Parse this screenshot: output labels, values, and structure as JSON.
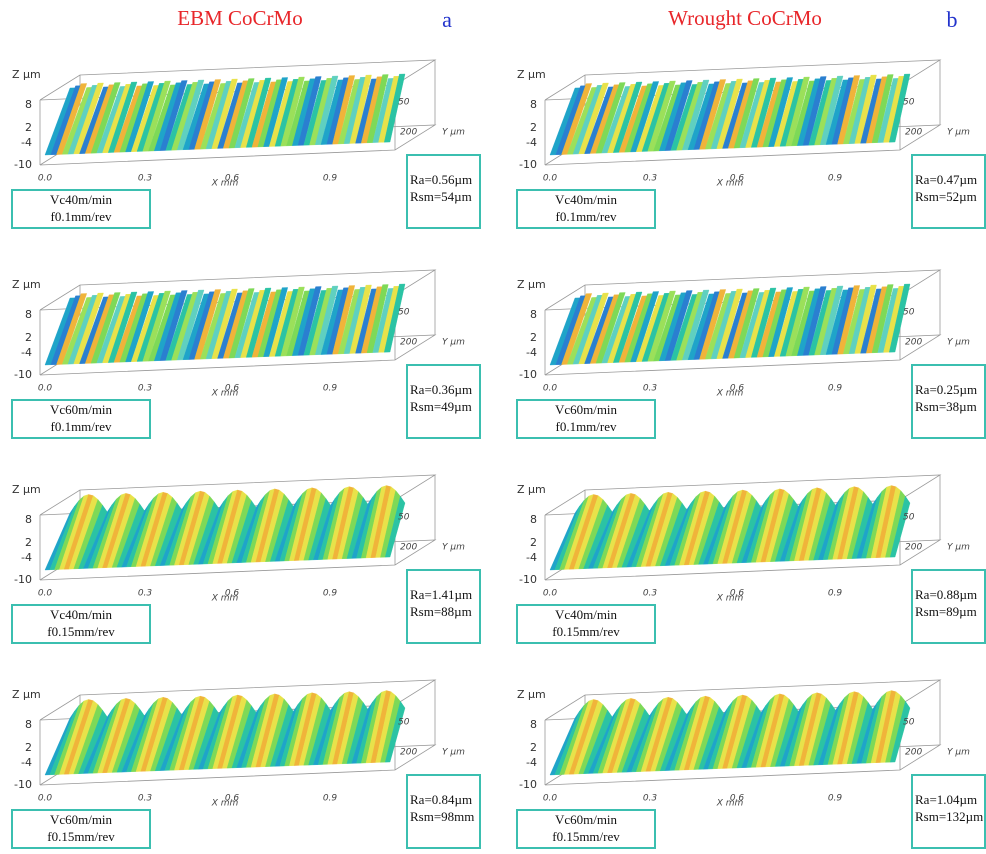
{
  "columns": [
    {
      "title": "EBM CoCrMo",
      "letter": "a",
      "panels": [
        {
          "speed": "Vc40m/min",
          "feed": "f0.1mm/rev",
          "ra": "Ra=0.56µm",
          "rsm": "Rsm=54µm"
        },
        {
          "speed": "Vc60m/min",
          "feed": "f0.1mm/rev",
          "ra": "Ra=0.36µm",
          "rsm": "Rsm=49µm"
        },
        {
          "speed": "Vc40m/min",
          "feed": "f0.15mm/rev",
          "ra": "Ra=1.41µm",
          "rsm": "Rsm=88µm"
        },
        {
          "speed": "Vc60m/min",
          "feed": "f0.15mm/rev",
          "ra": "Ra=0.84µm",
          "rsm": "Rsm=98mm"
        }
      ]
    },
    {
      "title": "Wrought CoCrMo",
      "letter": "b",
      "panels": [
        {
          "speed": "Vc40m/min",
          "feed": "f0.1mm/rev",
          "ra": "Ra=0.47µm",
          "rsm": "Rsm=52µm"
        },
        {
          "speed": "Vc60m/min",
          "feed": "f0.1mm/rev",
          "ra": "Ra=0.25µm",
          "rsm": "Rsm=38µm"
        },
        {
          "speed": "Vc40m/min",
          "feed": "f0.15mm/rev",
          "ra": "Ra=0.88µm",
          "rsm": "Rsm=89µm"
        },
        {
          "speed": "Vc60m/min",
          "feed": "f0.15mm/rev",
          "ra": "Ra=1.04µm",
          "rsm": "Rsm=132µm"
        }
      ]
    }
  ],
  "axes": {
    "z_label": "Z µm",
    "z_ticks": [
      "8",
      "2",
      "-4",
      "-10"
    ],
    "y_label": "Y µm",
    "y_ticks": [
      "50",
      "200"
    ],
    "x_label": "X mm",
    "x_ticks": [
      "0.0",
      "0.3",
      "0.6",
      "0.9"
    ]
  }
}
